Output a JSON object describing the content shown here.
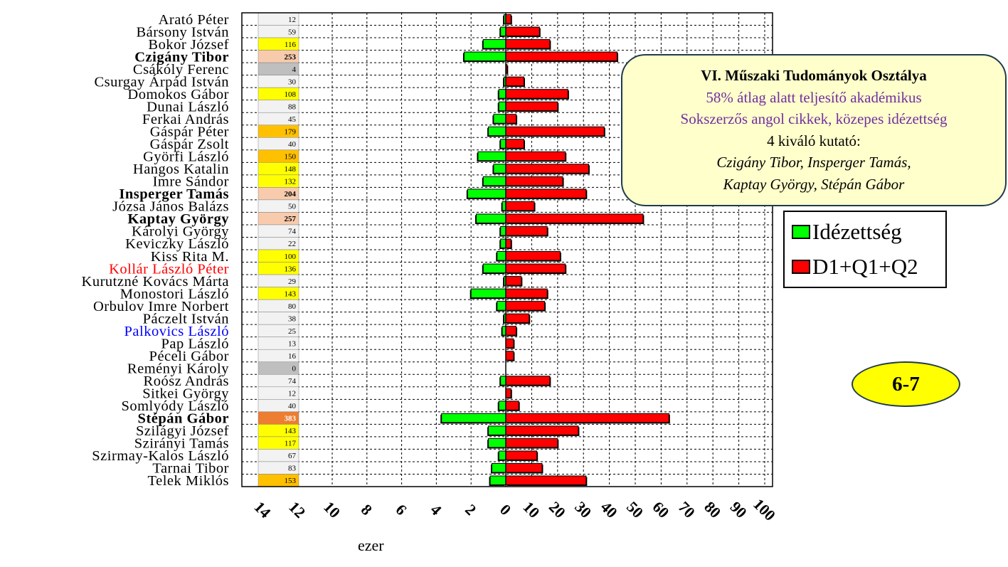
{
  "chart_data": {
    "type": "bar",
    "orientation": "horizontal",
    "xlabel": "ezer",
    "left_axis": {
      "ticks": [
        "14",
        "12",
        "10",
        "8",
        "6",
        "4",
        "2",
        "0"
      ],
      "range": [
        0,
        14
      ]
    },
    "right_axis": {
      "ticks": [
        "10",
        "20",
        "30",
        "40",
        "50",
        "60",
        "70",
        "80",
        "90",
        "100"
      ],
      "range": [
        0,
        100
      ]
    },
    "grid": true,
    "legend_position": "right",
    "series": [
      {
        "name": "Idézettség",
        "color": "#00ff00",
        "direction": "left",
        "unit": "ezer"
      },
      {
        "name": "D1+Q1+Q2",
        "color": "#ff0000",
        "direction": "right"
      }
    ],
    "rows": [
      {
        "name": "Arató Péter",
        "score": "12",
        "idezettseg": 0.1,
        "d1q1q2": 2,
        "cell_color": "#f2f2f2"
      },
      {
        "name": "Bársony István",
        "score": "59",
        "idezettseg": 0.3,
        "d1q1q2": 13,
        "cell_color": "#f2f2f2"
      },
      {
        "name": "Bokor József",
        "score": "116",
        "idezettseg": 1.3,
        "d1q1q2": 17,
        "cell_color": "#ffff00"
      },
      {
        "name": "Czigány Tibor",
        "score": "253",
        "idezettseg": 2.4,
        "d1q1q2": 43,
        "cell_color": "#f8cbad",
        "bold": true
      },
      {
        "name": "Csákóly Ferenc",
        "score": "4",
        "idezettseg": 0.0,
        "d1q1q2": 0.5,
        "cell_color": "#bfbfbf"
      },
      {
        "name": "Csurgay Árpád István",
        "score": "30",
        "idezettseg": 0.1,
        "d1q1q2": 7,
        "cell_color": "#f2f2f2"
      },
      {
        "name": "Domokos Gábor",
        "score": "108",
        "idezettseg": 0.4,
        "d1q1q2": 24,
        "cell_color": "#ffff00"
      },
      {
        "name": "Dunai László",
        "score": "88",
        "idezettseg": 0.4,
        "d1q1q2": 20,
        "cell_color": "#f2f2f2"
      },
      {
        "name": "Ferkai András",
        "score": "45",
        "idezettseg": 0.7,
        "d1q1q2": 4,
        "cell_color": "#f2f2f2"
      },
      {
        "name": "Gáspár Péter",
        "score": "179",
        "idezettseg": 1.0,
        "d1q1q2": 38,
        "cell_color": "#ffc000"
      },
      {
        "name": "Gáspár Zsolt",
        "score": "40",
        "idezettseg": 0.3,
        "d1q1q2": 7,
        "cell_color": "#f2f2f2"
      },
      {
        "name": "Györfi László",
        "score": "150",
        "idezettseg": 1.6,
        "d1q1q2": 23,
        "cell_color": "#ffc000"
      },
      {
        "name": "Hangos Katalin",
        "score": "148",
        "idezettseg": 0.7,
        "d1q1q2": 32,
        "cell_color": "#ffff00"
      },
      {
        "name": "Imre Sándor",
        "score": "132",
        "idezettseg": 1.3,
        "d1q1q2": 22,
        "cell_color": "#ffff00"
      },
      {
        "name": "Insperger Tamás",
        "score": "204",
        "idezettseg": 2.2,
        "d1q1q2": 31,
        "cell_color": "#f8cbad",
        "bold": true
      },
      {
        "name": "Józsa János Balázs",
        "score": "50",
        "idezettseg": 0.2,
        "d1q1q2": 11,
        "cell_color": "#f2f2f2"
      },
      {
        "name": "Kaptay György",
        "score": "257",
        "idezettseg": 1.7,
        "d1q1q2": 53,
        "cell_color": "#f8cbad",
        "bold": true
      },
      {
        "name": "Károlyi György",
        "score": "74",
        "idezettseg": 0.3,
        "d1q1q2": 16,
        "cell_color": "#f2f2f2"
      },
      {
        "name": "Keviczky László",
        "score": "22",
        "idezettseg": 0.3,
        "d1q1q2": 2,
        "cell_color": "#f2f2f2"
      },
      {
        "name": "Kiss Rita M.",
        "score": "100",
        "idezettseg": 0.5,
        "d1q1q2": 21,
        "cell_color": "#ffff00"
      },
      {
        "name": "Kollár László Péter",
        "score": "136",
        "idezettseg": 1.3,
        "d1q1q2": 23,
        "cell_color": "#ffff00",
        "color": "#ff0000"
      },
      {
        "name": "Kurutzné Kovács Márta",
        "score": "29",
        "idezettseg": 0.1,
        "d1q1q2": 6,
        "cell_color": "#f2f2f2"
      },
      {
        "name": "Monostori László",
        "score": "143",
        "idezettseg": 2.0,
        "d1q1q2": 16,
        "cell_color": "#ffff00"
      },
      {
        "name": "Orbulov Imre Norbert",
        "score": "80",
        "idezettseg": 0.5,
        "d1q1q2": 15,
        "cell_color": "#f2f2f2"
      },
      {
        "name": "Páczelt István",
        "score": "38",
        "idezettseg": 0.1,
        "d1q1q2": 9,
        "cell_color": "#f2f2f2"
      },
      {
        "name": "Palkovics László",
        "score": "25",
        "idezettseg": 0.2,
        "d1q1q2": 4,
        "cell_color": "#f2f2f2",
        "color": "#0000ff"
      },
      {
        "name": "Pap László",
        "score": "13",
        "idezettseg": 0.0,
        "d1q1q2": 3,
        "cell_color": "#f2f2f2"
      },
      {
        "name": "Péceli Gábor",
        "score": "16",
        "idezettseg": 0.0,
        "d1q1q2": 3,
        "cell_color": "#f2f2f2"
      },
      {
        "name": "Reményi Károly",
        "score": "0",
        "idezettseg": 0.0,
        "d1q1q2": 0,
        "cell_color": "#bfbfbf"
      },
      {
        "name": "Roósz András",
        "score": "74",
        "idezettseg": 0.3,
        "d1q1q2": 17,
        "cell_color": "#f2f2f2"
      },
      {
        "name": "Sitkei György",
        "score": "12",
        "idezettseg": 0.0,
        "d1q1q2": 2,
        "cell_color": "#f2f2f2"
      },
      {
        "name": "Somlyódy László",
        "score": "40",
        "idezettseg": 0.4,
        "d1q1q2": 5,
        "cell_color": "#f2f2f2"
      },
      {
        "name": "Stépán Gábor",
        "score": "383",
        "idezettseg": 3.7,
        "d1q1q2": 63,
        "cell_color": "#ed7d31",
        "bold": true
      },
      {
        "name": "Szilágyi József",
        "score": "143",
        "idezettseg": 1.0,
        "d1q1q2": 28,
        "cell_color": "#ffff00"
      },
      {
        "name": "Szirányi Tamás",
        "score": "117",
        "idezettseg": 1.0,
        "d1q1q2": 20,
        "cell_color": "#ffff00"
      },
      {
        "name": "Szirmay-Kalos László",
        "score": "67",
        "idezettseg": 0.4,
        "d1q1q2": 12,
        "cell_color": "#f2f2f2"
      },
      {
        "name": "Tarnai Tibor",
        "score": "83",
        "idezettseg": 0.8,
        "d1q1q2": 14,
        "cell_color": "#f2f2f2"
      },
      {
        "name": "Telek Miklós",
        "score": "153",
        "idezettseg": 0.9,
        "d1q1q2": 31,
        "cell_color": "#ffc000"
      }
    ]
  },
  "info_box": {
    "line1": "VI. Műszaki Tudományok Osztálya",
    "line2": "58% átlag alatt teljesítő akadémikus",
    "line3": "Sokszerzős angol cikkek, közepes idézettség",
    "line4": "4 kiváló kutató:",
    "line5": "Czigány Tibor, Insperger Tamás,",
    "line6": "Kaptay György, Stépán Gábor"
  },
  "legend": {
    "idezettseg_label": "Idézettség",
    "idezettseg_color": "#00ff00",
    "d1q1q2_label": "D1+Q1+Q2",
    "d1q1q2_color": "#ff0000"
  },
  "badge": {
    "label": "6-7"
  },
  "axis_unit": "ezer"
}
